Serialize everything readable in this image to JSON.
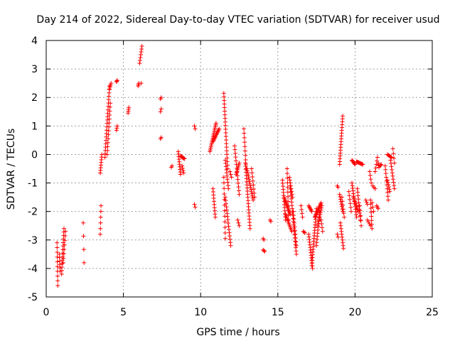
{
  "chart_data": {
    "type": "scatter",
    "title": "Day 214 of 2022, Sidereal Day-to-day VTEC variation (SDTVAR) for receiver usud",
    "xlabel": "GPS time / hours",
    "ylabel": "SDTVAR / TECUs",
    "xlim": [
      0,
      25
    ],
    "ylim": [
      -5,
      4
    ],
    "xticks": [
      0,
      5,
      10,
      15,
      20,
      25
    ],
    "yticks": [
      -5,
      -4,
      -3,
      -2,
      -1,
      0,
      1,
      2,
      3,
      4
    ],
    "grid": true,
    "marker": "+",
    "color": "#ff0000",
    "tracks": [
      {
        "x0": 0.7,
        "y0": -3.1,
        "x1": 0.75,
        "y1": -4.6,
        "n": 10
      },
      {
        "x0": 0.85,
        "y0": -3.5,
        "x1": 0.9,
        "y1": -4.1,
        "n": 6
      },
      {
        "x0": 1.0,
        "y0": -4.2,
        "x1": 1.15,
        "y1": -2.6,
        "n": 14
      },
      {
        "x0": 1.1,
        "y0": -3.8,
        "x1": 1.25,
        "y1": -2.7,
        "n": 8
      },
      {
        "x0": 2.4,
        "y0": -2.4,
        "x1": 2.45,
        "y1": -3.8,
        "n": 4
      },
      {
        "x0": 3.5,
        "y0": -2.8,
        "x1": 3.55,
        "y1": -1.8,
        "n": 6
      },
      {
        "x0": 3.5,
        "y0": -0.65,
        "x1": 3.6,
        "y1": 0.0,
        "n": 8
      },
      {
        "x0": 3.8,
        "y0": -0.1,
        "x1": 4.1,
        "y1": 2.4,
        "n": 22
      },
      {
        "x0": 3.95,
        "y0": 0.0,
        "x1": 4.15,
        "y1": 1.8,
        "n": 14
      },
      {
        "x0": 4.1,
        "y0": 2.3,
        "x1": 4.2,
        "y1": 2.5,
        "n": 4
      },
      {
        "x0": 4.55,
        "y0": 2.55,
        "x1": 4.6,
        "y1": 2.6,
        "n": 3
      },
      {
        "x0": 4.55,
        "y0": 0.85,
        "x1": 4.6,
        "y1": 1.0,
        "n": 3
      },
      {
        "x0": 5.3,
        "y0": 1.45,
        "x1": 5.35,
        "y1": 1.65,
        "n": 4
      },
      {
        "x0": 5.95,
        "y0": 2.4,
        "x1": 6.0,
        "y1": 2.5,
        "n": 3
      },
      {
        "x0": 6.05,
        "y0": 3.2,
        "x1": 6.2,
        "y1": 3.8,
        "n": 7
      },
      {
        "x0": 6.15,
        "y0": 2.5,
        "x1": 6.15,
        "y1": 2.5,
        "n": 1
      },
      {
        "x0": 7.4,
        "y0": 1.95,
        "x1": 7.45,
        "y1": 2.0,
        "n": 2
      },
      {
        "x0": 7.4,
        "y0": 1.5,
        "x1": 7.45,
        "y1": 1.6,
        "n": 2
      },
      {
        "x0": 7.4,
        "y0": 0.55,
        "x1": 7.45,
        "y1": 0.6,
        "n": 2
      },
      {
        "x0": 8.1,
        "y0": -0.45,
        "x1": 8.15,
        "y1": -0.4,
        "n": 2
      },
      {
        "x0": 8.55,
        "y0": 0.1,
        "x1": 8.7,
        "y1": -0.7,
        "n": 10
      },
      {
        "x0": 8.7,
        "y0": -0.05,
        "x1": 8.95,
        "y1": -0.15,
        "n": 8
      },
      {
        "x0": 8.8,
        "y0": -0.4,
        "x1": 8.9,
        "y1": -0.65,
        "n": 4
      },
      {
        "x0": 9.6,
        "y0": 1.0,
        "x1": 9.65,
        "y1": 0.9,
        "n": 2
      },
      {
        "x0": 9.6,
        "y0": -1.75,
        "x1": 9.65,
        "y1": -1.85,
        "n": 2
      },
      {
        "x0": 10.6,
        "y0": 0.1,
        "x1": 11.0,
        "y1": 1.1,
        "n": 18
      },
      {
        "x0": 10.8,
        "y0": 0.45,
        "x1": 11.2,
        "y1": 0.9,
        "n": 12
      },
      {
        "x0": 10.8,
        "y0": -1.2,
        "x1": 10.95,
        "y1": -2.2,
        "n": 10
      },
      {
        "x0": 11.5,
        "y0": 2.15,
        "x1": 11.75,
        "y1": -0.5,
        "n": 22
      },
      {
        "x0": 11.6,
        "y0": -0.2,
        "x1": 11.8,
        "y1": -1.2,
        "n": 10
      },
      {
        "x0": 11.5,
        "y0": -0.8,
        "x1": 11.6,
        "y1": -2.95,
        "n": 12
      },
      {
        "x0": 11.6,
        "y0": -1.5,
        "x1": 11.95,
        "y1": -3.2,
        "n": 16
      },
      {
        "x0": 11.9,
        "y0": -0.6,
        "x1": 12.0,
        "y1": -0.8,
        "n": 3
      },
      {
        "x0": 12.2,
        "y0": 0.3,
        "x1": 12.5,
        "y1": -1.4,
        "n": 14
      },
      {
        "x0": 12.3,
        "y0": -0.7,
        "x1": 12.5,
        "y1": -0.3,
        "n": 8
      },
      {
        "x0": 12.4,
        "y0": -2.3,
        "x1": 12.5,
        "y1": -2.5,
        "n": 3
      },
      {
        "x0": 12.8,
        "y0": 0.9,
        "x1": 12.95,
        "y1": -0.5,
        "n": 10
      },
      {
        "x0": 12.9,
        "y0": -0.3,
        "x1": 13.2,
        "y1": -2.6,
        "n": 22
      },
      {
        "x0": 13.0,
        "y0": -0.5,
        "x1": 13.4,
        "y1": -1.6,
        "n": 16
      },
      {
        "x0": 13.3,
        "y0": -0.5,
        "x1": 13.5,
        "y1": -1.5,
        "n": 8
      },
      {
        "x0": 14.05,
        "y0": -2.95,
        "x1": 14.1,
        "y1": -3.0,
        "n": 2
      },
      {
        "x0": 14.05,
        "y0": -3.35,
        "x1": 14.15,
        "y1": -3.4,
        "n": 3
      },
      {
        "x0": 14.5,
        "y0": -2.3,
        "x1": 14.55,
        "y1": -2.35,
        "n": 2
      },
      {
        "x0": 15.3,
        "y0": -0.9,
        "x1": 15.5,
        "y1": -2.3,
        "n": 14
      },
      {
        "x0": 15.4,
        "y0": -1.5,
        "x1": 15.8,
        "y1": -2.1,
        "n": 14
      },
      {
        "x0": 15.5,
        "y0": -2.1,
        "x1": 15.9,
        "y1": -2.7,
        "n": 12
      },
      {
        "x0": 15.6,
        "y0": -0.5,
        "x1": 15.7,
        "y1": -2.3,
        "n": 12
      },
      {
        "x0": 15.75,
        "y0": -0.8,
        "x1": 15.95,
        "y1": -1.5,
        "n": 8
      },
      {
        "x0": 15.8,
        "y0": -1.1,
        "x1": 16.2,
        "y1": -3.5,
        "n": 22
      },
      {
        "x0": 16.0,
        "y0": -2.0,
        "x1": 16.2,
        "y1": -3.2,
        "n": 10
      },
      {
        "x0": 16.5,
        "y0": -1.8,
        "x1": 16.6,
        "y1": -2.2,
        "n": 4
      },
      {
        "x0": 16.65,
        "y0": -2.7,
        "x1": 16.75,
        "y1": -2.75,
        "n": 3
      },
      {
        "x0": 17.0,
        "y0": -1.8,
        "x1": 17.2,
        "y1": -2.0,
        "n": 6
      },
      {
        "x0": 17.0,
        "y0": -2.8,
        "x1": 17.25,
        "y1": -4.0,
        "n": 14
      },
      {
        "x0": 17.2,
        "y0": -3.9,
        "x1": 17.5,
        "y1": -1.9,
        "n": 22
      },
      {
        "x0": 17.4,
        "y0": -2.2,
        "x1": 17.8,
        "y1": -1.7,
        "n": 14
      },
      {
        "x0": 17.5,
        "y0": -3.2,
        "x1": 17.7,
        "y1": -2.0,
        "n": 12
      },
      {
        "x0": 17.6,
        "y0": -2.5,
        "x1": 17.85,
        "y1": -1.8,
        "n": 10
      },
      {
        "x0": 17.8,
        "y0": -2.3,
        "x1": 17.9,
        "y1": -2.7,
        "n": 4
      },
      {
        "x0": 18.85,
        "y0": -1.1,
        "x1": 18.9,
        "y1": -1.15,
        "n": 2
      },
      {
        "x0": 18.85,
        "y0": -2.8,
        "x1": 18.9,
        "y1": -2.9,
        "n": 2
      },
      {
        "x0": 19.0,
        "y0": -0.35,
        "x1": 19.2,
        "y1": 1.35,
        "n": 18
      },
      {
        "x0": 19.0,
        "y0": -1.4,
        "x1": 19.2,
        "y1": -2.0,
        "n": 8
      },
      {
        "x0": 19.05,
        "y0": -2.4,
        "x1": 19.25,
        "y1": -3.3,
        "n": 10
      },
      {
        "x0": 19.15,
        "y0": -1.5,
        "x1": 19.3,
        "y1": -2.2,
        "n": 6
      },
      {
        "x0": 19.6,
        "y0": -1.3,
        "x1": 19.75,
        "y1": -2.0,
        "n": 6
      },
      {
        "x0": 19.8,
        "y0": -0.2,
        "x1": 20.0,
        "y1": -0.35,
        "n": 6
      },
      {
        "x0": 19.8,
        "y0": -1.0,
        "x1": 20.1,
        "y1": -2.2,
        "n": 14
      },
      {
        "x0": 19.9,
        "y0": -1.5,
        "x1": 20.2,
        "y1": -2.0,
        "n": 10
      },
      {
        "x0": 20.1,
        "y0": -0.25,
        "x1": 20.5,
        "y1": -0.35,
        "n": 10
      },
      {
        "x0": 20.15,
        "y0": -1.2,
        "x1": 20.35,
        "y1": -2.3,
        "n": 10
      },
      {
        "x0": 20.3,
        "y0": -1.8,
        "x1": 20.4,
        "y1": -2.5,
        "n": 5
      },
      {
        "x0": 20.7,
        "y0": -1.6,
        "x1": 20.8,
        "y1": -1.75,
        "n": 3
      },
      {
        "x0": 20.8,
        "y0": -2.3,
        "x1": 21.0,
        "y1": -2.5,
        "n": 4
      },
      {
        "x0": 20.95,
        "y0": -0.6,
        "x1": 21.05,
        "y1": -1.0,
        "n": 4
      },
      {
        "x0": 21.0,
        "y0": -1.6,
        "x1": 21.1,
        "y1": -2.6,
        "n": 8
      },
      {
        "x0": 21.1,
        "y0": -1.7,
        "x1": 21.2,
        "y1": -2.0,
        "n": 3
      },
      {
        "x0": 21.15,
        "y0": -1.1,
        "x1": 21.3,
        "y1": -1.2,
        "n": 3
      },
      {
        "x0": 21.3,
        "y0": -0.6,
        "x1": 21.45,
        "y1": -0.1,
        "n": 5
      },
      {
        "x0": 21.4,
        "y0": -1.8,
        "x1": 21.5,
        "y1": -1.9,
        "n": 3
      },
      {
        "x0": 21.5,
        "y0": -0.3,
        "x1": 21.55,
        "y1": -0.45,
        "n": 3
      },
      {
        "x0": 21.6,
        "y0": -0.4,
        "x1": 21.7,
        "y1": -0.35,
        "n": 3
      },
      {
        "x0": 21.95,
        "y0": -0.4,
        "x1": 22.15,
        "y1": -1.6,
        "n": 10
      },
      {
        "x0": 22.1,
        "y0": -0.9,
        "x1": 22.25,
        "y1": -1.3,
        "n": 6
      },
      {
        "x0": 22.1,
        "y0": 0.0,
        "x1": 22.35,
        "y1": -0.1,
        "n": 6
      },
      {
        "x0": 22.3,
        "y0": -0.2,
        "x1": 22.55,
        "y1": -1.2,
        "n": 10
      },
      {
        "x0": 22.45,
        "y0": 0.2,
        "x1": 22.55,
        "y1": -0.3,
        "n": 4
      }
    ]
  }
}
